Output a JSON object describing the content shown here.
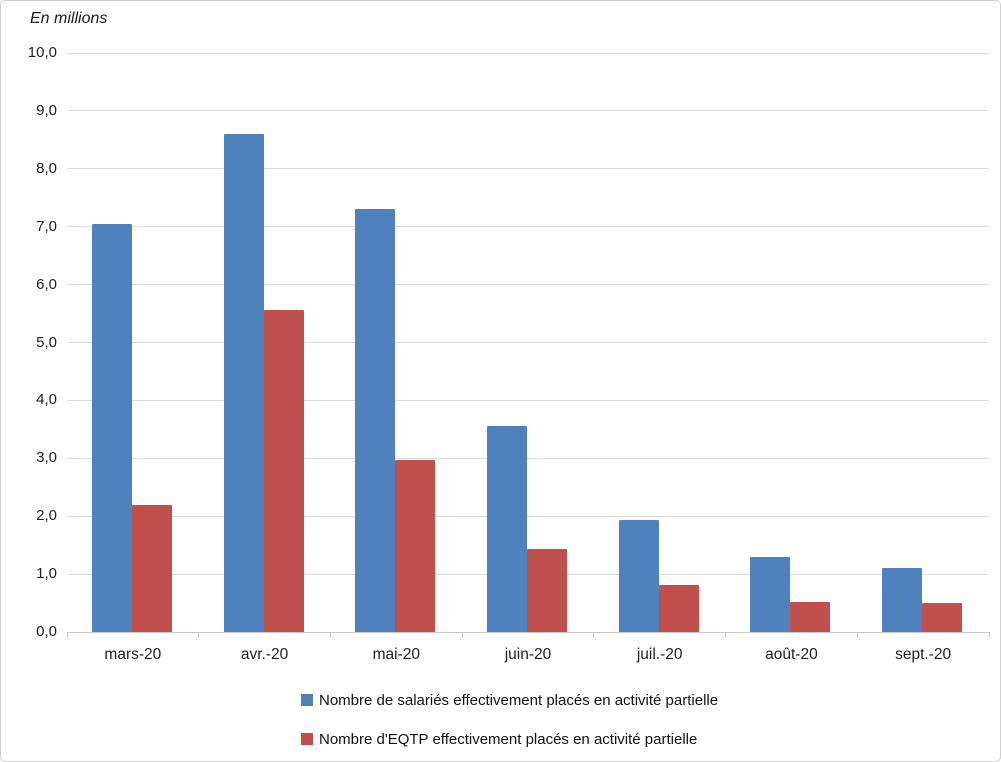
{
  "title": "En millions",
  "chart_data": {
    "type": "bar",
    "categories": [
      "mars-20",
      "avr.-20",
      "mai-20",
      "juin-20",
      "juil.-20",
      "août-20",
      "sept.-20"
    ],
    "series": [
      {
        "name": "Nombre de salariés effectivement placés en activité partielle",
        "color": "#4F81BD",
        "values": [
          7.05,
          8.6,
          7.3,
          3.55,
          1.93,
          1.3,
          1.1
        ]
      },
      {
        "name": "Nombre d'EQTP effectivement placés en activité partielle",
        "color": "#C0504D",
        "values": [
          2.2,
          5.57,
          2.97,
          1.44,
          0.81,
          0.52,
          0.5
        ]
      }
    ],
    "title": "En millions",
    "xlabel": "",
    "ylabel": "En millions",
    "ylim": [
      0,
      10
    ],
    "ytick_step": 1,
    "ytick_labels": [
      "0,0",
      "1,0",
      "2,0",
      "3,0",
      "4,0",
      "5,0",
      "6,0",
      "7,0",
      "8,0",
      "9,0",
      "10,0"
    ],
    "decimal_separator": ",",
    "grid": true,
    "gridline_color": "#DCDCDC",
    "axis_line_color": "#C6C6C6",
    "legend_position": "bottom-left-stacked"
  }
}
